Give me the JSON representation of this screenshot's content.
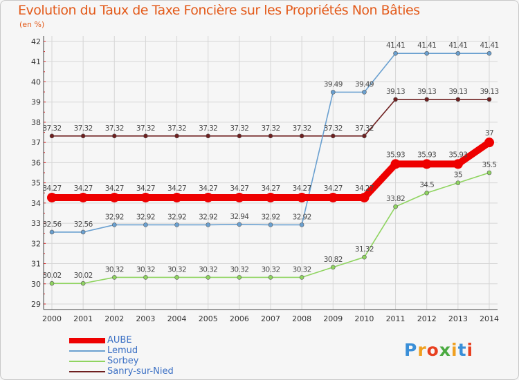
{
  "chart_data": {
    "type": "line",
    "title": "Evolution du Taux de Taxe Foncière sur les Propriétés Non Bâties",
    "unit_label": "(en %)",
    "x": [
      "2000",
      "2001",
      "2002",
      "2003",
      "2004",
      "2005",
      "2006",
      "2007",
      "2008",
      "2009",
      "2010",
      "2011",
      "2012",
      "2013",
      "2014"
    ],
    "yticks": [
      "29",
      "30",
      "31",
      "32",
      "33",
      "34",
      "35",
      "36",
      "37",
      "38",
      "39",
      "40",
      "41",
      "42"
    ],
    "ylim": [
      29,
      42
    ],
    "grid": true,
    "series": [
      {
        "name": "Sanry-sur-Nied",
        "color": "#6e1f1f",
        "values": [
          37.32,
          37.32,
          37.32,
          37.32,
          37.32,
          37.32,
          37.32,
          37.32,
          37.32,
          37.32,
          37.32,
          39.13,
          39.13,
          39.13,
          39.13
        ],
        "labels": [
          "37.32",
          "37.32",
          "37.32",
          "37.32",
          "37.32",
          "37.32",
          "37.32",
          "37.32",
          "37.32",
          "37.32",
          "37.32",
          "39.13",
          "39.13",
          "39.13",
          "39.13"
        ]
      },
      {
        "name": "Sorbey",
        "color": "#8fd460",
        "values": [
          30.02,
          30.02,
          30.32,
          30.32,
          30.32,
          30.32,
          30.32,
          30.32,
          30.32,
          30.82,
          31.32,
          33.82,
          34.5,
          35,
          35.5
        ],
        "labels": [
          "30.02",
          "30.02",
          "30.32",
          "30.32",
          "30.32",
          "30.32",
          "30.32",
          "30.32",
          "30.32",
          "30.82",
          "31.32",
          "33.82",
          "34.5",
          "35",
          "35.5"
        ]
      },
      {
        "name": "Lemud",
        "color": "#6aa0d0",
        "values": [
          32.56,
          32.56,
          32.92,
          32.92,
          32.92,
          32.92,
          32.94,
          32.92,
          32.92,
          39.49,
          39.49,
          41.41,
          41.41,
          41.41,
          41.41
        ],
        "labels": [
          "32.56",
          "32.56",
          "32.92",
          "32.92",
          "32.92",
          "32.92",
          "32.94",
          "32.92",
          "32.92",
          "39.49",
          "39.49",
          "41.41",
          "41.41",
          "41.41",
          "41.41"
        ]
      },
      {
        "name": "AUBE",
        "color": "#ee0000",
        "values": [
          34.27,
          34.27,
          34.27,
          34.27,
          34.27,
          34.27,
          34.27,
          34.27,
          34.27,
          34.27,
          34.27,
          35.93,
          35.93,
          35.93,
          37
        ],
        "labels": [
          "34.27",
          "34.27",
          "34.27",
          "34.27",
          "34.27",
          "34.27",
          "34.27",
          "34.27",
          "34.27",
          "34.27",
          "34.27",
          "35.93",
          "35.93",
          "35.93",
          "37"
        ]
      }
    ],
    "legend": [
      "AUBE",
      "Lemud",
      "Sorbey",
      "Sanry-sur-Nied"
    ],
    "legend_placement": "bottom-left"
  },
  "brand": {
    "logo_text": "Proxiti",
    "colors": [
      "#3a8fd8",
      "#f0a020",
      "#e84020",
      "#4aaa40",
      "#f0a020",
      "#3a8fd8",
      "#e84020"
    ]
  }
}
